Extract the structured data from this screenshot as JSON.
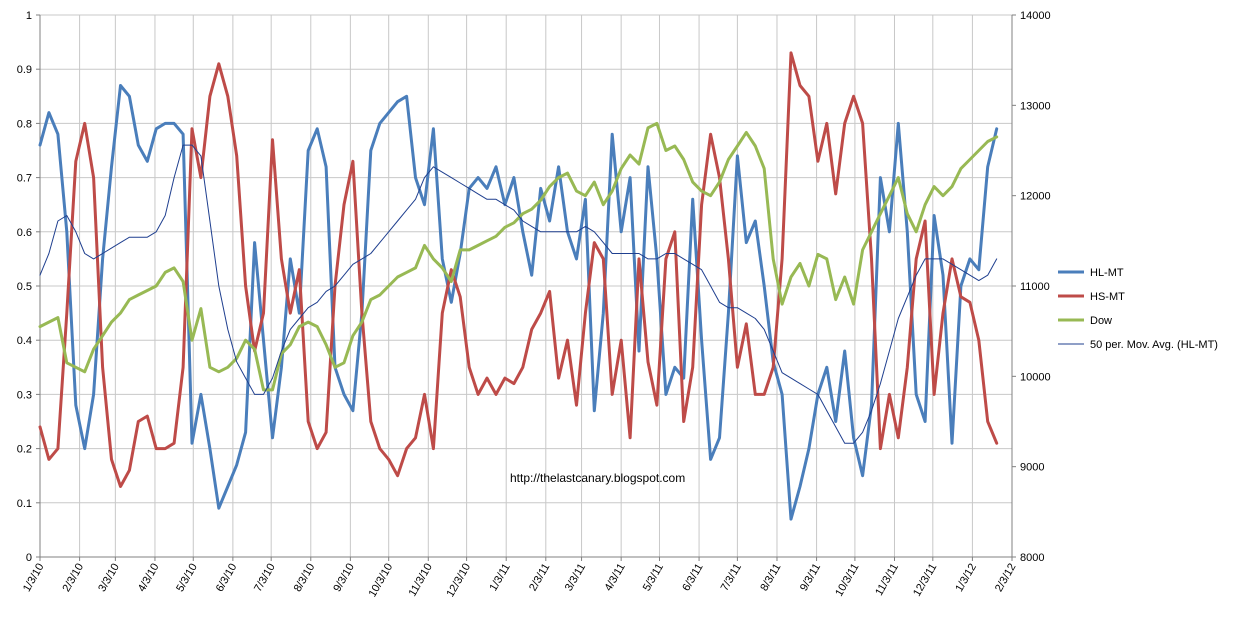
{
  "chart_data": {
    "type": "line",
    "title": "",
    "xlabel": "",
    "ylabel": "",
    "y2label": "",
    "x_ticks": [
      "1/3/10",
      "2/3/10",
      "3/3/10",
      "4/3/10",
      "5/3/10",
      "6/3/10",
      "7/3/10",
      "8/3/10",
      "9/3/10",
      "10/3/10",
      "11/3/10",
      "12/3/10",
      "1/3/11",
      "2/3/11",
      "3/3/11",
      "4/3/11",
      "5/3/11",
      "6/3/11",
      "7/3/11",
      "8/3/11",
      "9/3/11",
      "10/3/11",
      "11/3/11",
      "12/3/11",
      "1/3/12",
      "2/3/12"
    ],
    "ylim": [
      0,
      1
    ],
    "y_ticks": [
      "0",
      "0.1",
      "0.2",
      "0.3",
      "0.4",
      "0.5",
      "0.6",
      "0.7",
      "0.8",
      "0.9",
      "1"
    ],
    "y2lim": [
      8000,
      14000
    ],
    "y2_ticks": [
      "8000",
      "9000",
      "10000",
      "11000",
      "12000",
      "13000",
      "14000"
    ],
    "grid": true,
    "legend_position": "right",
    "annotation": "http://thelastcanary.blogspot.com",
    "series": [
      {
        "name": "HL-MT",
        "axis": "left",
        "color": "#4a7ebb",
        "x": [
          "1/3/10",
          "1/10/10",
          "1/17/10",
          "1/24/10",
          "1/31/10",
          "2/7/10",
          "2/14/10",
          "2/21/10",
          "2/28/10",
          "3/7/10",
          "3/14/10",
          "3/21/10",
          "3/28/10",
          "4/4/10",
          "4/11/10",
          "4/18/10",
          "4/25/10",
          "5/2/10",
          "5/9/10",
          "5/16/10",
          "5/23/10",
          "5/30/10",
          "6/6/10",
          "6/13/10",
          "6/20/10",
          "6/27/10",
          "7/4/10",
          "7/11/10",
          "7/18/10",
          "7/25/10",
          "8/1/10",
          "8/8/10",
          "8/15/10",
          "8/22/10",
          "8/29/10",
          "9/5/10",
          "9/12/10",
          "9/19/10",
          "9/26/10",
          "10/3/10",
          "10/10/10",
          "10/17/10",
          "10/24/10",
          "10/31/10",
          "11/7/10",
          "11/14/10",
          "11/21/10",
          "11/28/10",
          "12/5/10",
          "12/12/10",
          "12/19/10",
          "12/26/10",
          "1/2/11",
          "1/9/11",
          "1/16/11",
          "1/23/11",
          "1/30/11",
          "2/6/11",
          "2/13/11",
          "2/20/11",
          "2/27/11",
          "3/6/11",
          "3/13/11",
          "3/20/11",
          "3/27/11",
          "4/3/11",
          "4/10/11",
          "4/17/11",
          "4/24/11",
          "5/1/11",
          "5/8/11",
          "5/15/11",
          "5/22/11",
          "5/29/11",
          "6/5/11",
          "6/12/11",
          "6/19/11",
          "6/26/11",
          "7/3/11",
          "7/10/11",
          "7/17/11",
          "7/24/11",
          "7/31/11",
          "8/7/11",
          "8/14/11",
          "8/21/11",
          "8/28/11",
          "9/4/11",
          "9/11/11",
          "9/18/11",
          "9/25/11",
          "10/2/11",
          "10/9/11",
          "10/16/11",
          "10/23/11",
          "10/30/11",
          "11/6/11",
          "11/13/11",
          "11/20/11",
          "11/27/11",
          "12/4/11",
          "12/11/11",
          "12/18/11",
          "12/25/11",
          "1/1/12",
          "1/8/12",
          "1/15/12",
          "1/22/12"
        ],
        "values": [
          0.76,
          0.82,
          0.78,
          0.6,
          0.28,
          0.2,
          0.3,
          0.55,
          0.72,
          0.87,
          0.85,
          0.76,
          0.73,
          0.79,
          0.8,
          0.8,
          0.78,
          0.21,
          0.3,
          0.2,
          0.09,
          0.13,
          0.17,
          0.23,
          0.58,
          0.4,
          0.22,
          0.35,
          0.55,
          0.45,
          0.75,
          0.79,
          0.72,
          0.35,
          0.3,
          0.27,
          0.45,
          0.75,
          0.8,
          0.82,
          0.84,
          0.85,
          0.7,
          0.65,
          0.79,
          0.55,
          0.47,
          0.56,
          0.68,
          0.7,
          0.68,
          0.72,
          0.65,
          0.7,
          0.6,
          0.52,
          0.68,
          0.62,
          0.72,
          0.6,
          0.55,
          0.66,
          0.27,
          0.45,
          0.78,
          0.6,
          0.7,
          0.38,
          0.72,
          0.55,
          0.3,
          0.35,
          0.33,
          0.66,
          0.4,
          0.18,
          0.22,
          0.45,
          0.74,
          0.58,
          0.62,
          0.5,
          0.36,
          0.3,
          0.07,
          0.13,
          0.2,
          0.3,
          0.35,
          0.25,
          0.38,
          0.22,
          0.15,
          0.28,
          0.7,
          0.6,
          0.8,
          0.6,
          0.3,
          0.25,
          0.63,
          0.52,
          0.21,
          0.5,
          0.55,
          0.53,
          0.72,
          0.79
        ]
      },
      {
        "name": "HS-MT",
        "axis": "left",
        "color": "#be4b48",
        "x": [
          "1/3/10",
          "1/10/10",
          "1/17/10",
          "1/24/10",
          "1/31/10",
          "2/7/10",
          "2/14/10",
          "2/21/10",
          "2/28/10",
          "3/7/10",
          "3/14/10",
          "3/21/10",
          "3/28/10",
          "4/4/10",
          "4/11/10",
          "4/18/10",
          "4/25/10",
          "5/2/10",
          "5/9/10",
          "5/16/10",
          "5/23/10",
          "5/30/10",
          "6/6/10",
          "6/13/10",
          "6/20/10",
          "6/27/10",
          "7/4/10",
          "7/11/10",
          "7/18/10",
          "7/25/10",
          "8/1/10",
          "8/8/10",
          "8/15/10",
          "8/22/10",
          "8/29/10",
          "9/5/10",
          "9/12/10",
          "9/19/10",
          "9/26/10",
          "10/3/10",
          "10/10/10",
          "10/17/10",
          "10/24/10",
          "10/31/10",
          "11/7/10",
          "11/14/10",
          "11/21/10",
          "11/28/10",
          "12/5/10",
          "12/12/10",
          "12/19/10",
          "12/26/10",
          "1/2/11",
          "1/9/11",
          "1/16/11",
          "1/23/11",
          "1/30/11",
          "2/6/11",
          "2/13/11",
          "2/20/11",
          "2/27/11",
          "3/6/11",
          "3/13/11",
          "3/20/11",
          "3/27/11",
          "4/3/11",
          "4/10/11",
          "4/17/11",
          "4/24/11",
          "5/1/11",
          "5/8/11",
          "5/15/11",
          "5/22/11",
          "5/29/11",
          "6/5/11",
          "6/12/11",
          "6/19/11",
          "6/26/11",
          "7/3/11",
          "7/10/11",
          "7/17/11",
          "7/24/11",
          "7/31/11",
          "8/7/11",
          "8/14/11",
          "8/21/11",
          "8/28/11",
          "9/4/11",
          "9/11/11",
          "9/18/11",
          "9/25/11",
          "10/2/11",
          "10/9/11",
          "10/16/11",
          "10/23/11",
          "10/30/11",
          "11/6/11",
          "11/13/11",
          "11/20/11",
          "11/27/11",
          "12/4/11",
          "12/11/11",
          "12/18/11",
          "12/25/11",
          "1/1/12",
          "1/8/12",
          "1/15/12",
          "1/22/12"
        ],
        "values": [
          0.24,
          0.18,
          0.2,
          0.45,
          0.73,
          0.8,
          0.7,
          0.35,
          0.18,
          0.13,
          0.16,
          0.25,
          0.26,
          0.2,
          0.2,
          0.21,
          0.35,
          0.79,
          0.7,
          0.85,
          0.91,
          0.85,
          0.74,
          0.5,
          0.38,
          0.45,
          0.77,
          0.55,
          0.45,
          0.53,
          0.25,
          0.2,
          0.23,
          0.5,
          0.65,
          0.73,
          0.45,
          0.25,
          0.2,
          0.18,
          0.15,
          0.2,
          0.22,
          0.3,
          0.2,
          0.45,
          0.53,
          0.48,
          0.35,
          0.3,
          0.33,
          0.3,
          0.33,
          0.32,
          0.35,
          0.42,
          0.45,
          0.49,
          0.33,
          0.4,
          0.28,
          0.45,
          0.58,
          0.55,
          0.3,
          0.4,
          0.22,
          0.55,
          0.36,
          0.28,
          0.55,
          0.6,
          0.25,
          0.35,
          0.65,
          0.78,
          0.7,
          0.55,
          0.35,
          0.43,
          0.3,
          0.3,
          0.35,
          0.55,
          0.93,
          0.87,
          0.85,
          0.73,
          0.8,
          0.67,
          0.8,
          0.85,
          0.8,
          0.55,
          0.2,
          0.3,
          0.22,
          0.35,
          0.55,
          0.62,
          0.3,
          0.45,
          0.55,
          0.48,
          0.47,
          0.4,
          0.25,
          0.21
        ]
      },
      {
        "name": "Dow",
        "axis": "right",
        "color": "#98b954",
        "x": [
          "1/3/10",
          "1/10/10",
          "1/17/10",
          "1/24/10",
          "1/31/10",
          "2/7/10",
          "2/14/10",
          "2/21/10",
          "2/28/10",
          "3/7/10",
          "3/14/10",
          "3/21/10",
          "3/28/10",
          "4/4/10",
          "4/11/10",
          "4/18/10",
          "4/25/10",
          "5/2/10",
          "5/9/10",
          "5/16/10",
          "5/23/10",
          "5/30/10",
          "6/6/10",
          "6/13/10",
          "6/20/10",
          "6/27/10",
          "7/4/10",
          "7/11/10",
          "7/18/10",
          "7/25/10",
          "8/1/10",
          "8/8/10",
          "8/15/10",
          "8/22/10",
          "8/29/10",
          "9/5/10",
          "9/12/10",
          "9/19/10",
          "9/26/10",
          "10/3/10",
          "10/10/10",
          "10/17/10",
          "10/24/10",
          "10/31/10",
          "11/7/10",
          "11/14/10",
          "11/21/10",
          "11/28/10",
          "12/5/10",
          "12/12/10",
          "12/19/10",
          "12/26/10",
          "1/2/11",
          "1/9/11",
          "1/16/11",
          "1/23/11",
          "1/30/11",
          "2/6/11",
          "2/13/11",
          "2/20/11",
          "2/27/11",
          "3/6/11",
          "3/13/11",
          "3/20/11",
          "3/27/11",
          "4/3/11",
          "4/10/11",
          "4/17/11",
          "4/24/11",
          "5/1/11",
          "5/8/11",
          "5/15/11",
          "5/22/11",
          "5/29/11",
          "6/5/11",
          "6/12/11",
          "6/19/11",
          "6/26/11",
          "7/3/11",
          "7/10/11",
          "7/17/11",
          "7/24/11",
          "7/31/11",
          "8/7/11",
          "8/14/11",
          "8/21/11",
          "8/28/11",
          "9/4/11",
          "9/11/11",
          "9/18/11",
          "9/25/11",
          "10/2/11",
          "10/9/11",
          "10/16/11",
          "10/23/11",
          "10/30/11",
          "11/6/11",
          "11/13/11",
          "11/20/11",
          "11/27/11",
          "12/4/11",
          "12/11/11",
          "12/18/11",
          "12/25/11",
          "1/1/12",
          "1/8/12",
          "1/15/12",
          "1/22/12"
        ],
        "values": [
          10550,
          10600,
          10650,
          10150,
          10100,
          10050,
          10300,
          10450,
          10600,
          10700,
          10850,
          10900,
          10950,
          11000,
          11150,
          11200,
          11050,
          10400,
          10750,
          10100,
          10050,
          10100,
          10200,
          10400,
          10300,
          9850,
          9850,
          10250,
          10350,
          10550,
          10600,
          10550,
          10350,
          10100,
          10150,
          10450,
          10600,
          10850,
          10900,
          11000,
          11100,
          11150,
          11200,
          11450,
          11300,
          11200,
          11050,
          11400,
          11400,
          11450,
          11500,
          11550,
          11650,
          11700,
          11800,
          11850,
          11950,
          12100,
          12200,
          12250,
          12050,
          12000,
          12150,
          11900,
          12050,
          12300,
          12450,
          12350,
          12750,
          12800,
          12500,
          12550,
          12400,
          12150,
          12050,
          12000,
          12150,
          12400,
          12550,
          12700,
          12550,
          12300,
          11300,
          10800,
          11100,
          11250,
          11000,
          11350,
          11300,
          10850,
          11100,
          10800,
          11400,
          11600,
          11800,
          12000,
          12200,
          11800,
          11600,
          11900,
          12100,
          12000,
          12100,
          12300,
          12400,
          12500,
          12600,
          12650
        ]
      },
      {
        "name": "50 per. Mov. Avg. (HL-MT)",
        "axis": "left",
        "color": "#1f3f8f",
        "x": [
          "1/3/10",
          "1/10/10",
          "1/17/10",
          "1/24/10",
          "1/31/10",
          "2/7/10",
          "2/14/10",
          "2/21/10",
          "2/28/10",
          "3/7/10",
          "3/14/10",
          "3/21/10",
          "3/28/10",
          "4/4/10",
          "4/11/10",
          "4/18/10",
          "4/25/10",
          "5/2/10",
          "5/9/10",
          "5/16/10",
          "5/23/10",
          "5/30/10",
          "6/6/10",
          "6/13/10",
          "6/20/10",
          "6/27/10",
          "7/4/10",
          "7/11/10",
          "7/18/10",
          "7/25/10",
          "8/1/10",
          "8/8/10",
          "8/15/10",
          "8/22/10",
          "8/29/10",
          "9/5/10",
          "9/12/10",
          "9/19/10",
          "9/26/10",
          "10/3/10",
          "10/10/10",
          "10/17/10",
          "10/24/10",
          "10/31/10",
          "11/7/10",
          "11/14/10",
          "11/21/10",
          "11/28/10",
          "12/5/10",
          "12/12/10",
          "12/19/10",
          "12/26/10",
          "1/2/11",
          "1/9/11",
          "1/16/11",
          "1/23/11",
          "1/30/11",
          "2/6/11",
          "2/13/11",
          "2/20/11",
          "2/27/11",
          "3/6/11",
          "3/13/11",
          "3/20/11",
          "3/27/11",
          "4/3/11",
          "4/10/11",
          "4/17/11",
          "4/24/11",
          "5/1/11",
          "5/8/11",
          "5/15/11",
          "5/22/11",
          "5/29/11",
          "6/5/11",
          "6/12/11",
          "6/19/11",
          "6/26/11",
          "7/3/11",
          "7/10/11",
          "7/17/11",
          "7/24/11",
          "7/31/11",
          "8/7/11",
          "8/14/11",
          "8/21/11",
          "8/28/11",
          "9/4/11",
          "9/11/11",
          "9/18/11",
          "9/25/11",
          "10/2/11",
          "10/9/11",
          "10/16/11",
          "10/23/11",
          "10/30/11",
          "11/6/11",
          "11/13/11",
          "11/20/11",
          "11/27/11",
          "12/4/11",
          "12/11/11",
          "12/18/11",
          "12/25/11",
          "1/1/12",
          "1/8/12",
          "1/15/12",
          "1/22/12"
        ],
        "values": [
          0.52,
          0.56,
          0.62,
          0.63,
          0.6,
          0.56,
          0.55,
          0.56,
          0.57,
          0.58,
          0.59,
          0.59,
          0.59,
          0.6,
          0.63,
          0.7,
          0.76,
          0.76,
          0.74,
          0.62,
          0.5,
          0.42,
          0.36,
          0.33,
          0.3,
          0.3,
          0.33,
          0.38,
          0.42,
          0.44,
          0.46,
          0.47,
          0.49,
          0.5,
          0.52,
          0.54,
          0.55,
          0.56,
          0.58,
          0.6,
          0.62,
          0.64,
          0.66,
          0.7,
          0.72,
          0.71,
          0.7,
          0.69,
          0.68,
          0.67,
          0.66,
          0.66,
          0.65,
          0.64,
          0.62,
          0.61,
          0.6,
          0.6,
          0.6,
          0.6,
          0.6,
          0.61,
          0.6,
          0.58,
          0.56,
          0.56,
          0.56,
          0.56,
          0.55,
          0.55,
          0.56,
          0.56,
          0.55,
          0.54,
          0.53,
          0.5,
          0.47,
          0.46,
          0.46,
          0.45,
          0.44,
          0.42,
          0.38,
          0.34,
          0.33,
          0.32,
          0.31,
          0.3,
          0.27,
          0.24,
          0.21,
          0.21,
          0.23,
          0.27,
          0.32,
          0.38,
          0.44,
          0.48,
          0.52,
          0.55,
          0.55,
          0.55,
          0.54,
          0.53,
          0.52,
          0.51,
          0.52,
          0.55
        ]
      }
    ]
  }
}
